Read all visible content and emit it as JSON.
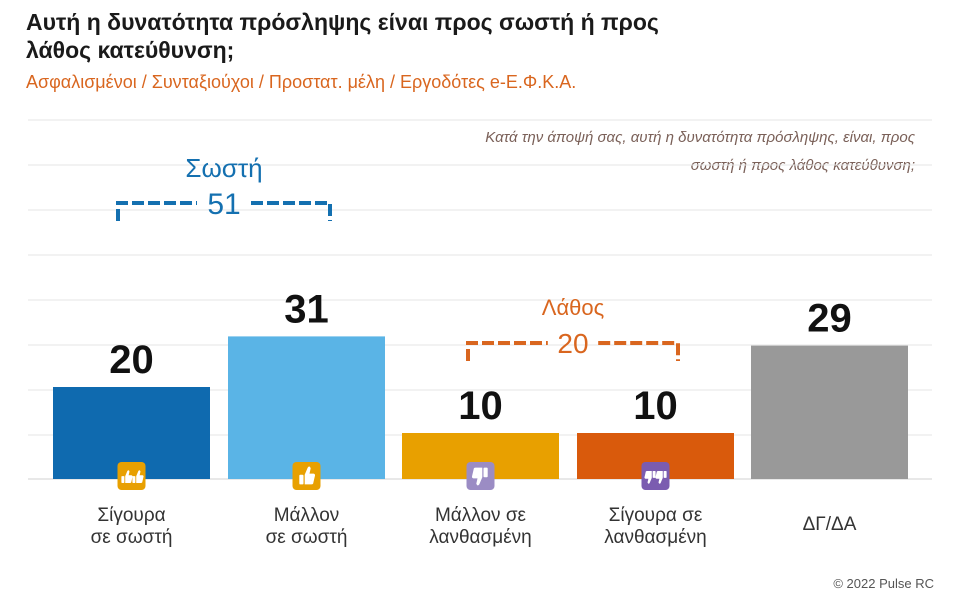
{
  "title": "Αυτή η δυνατότητα πρόσληψης είναι προς σωστή ή προς λάθος κατεύθυνση;",
  "subtitle": "Ασφαλισμένοι / Συνταξιούχοι / Προστατ. μέλη / Εργοδότες e-Ε.Φ.Κ.Α.",
  "question": "Κατά την άποψή σας, αυτή η δυνατότητα πρόσληψης, είναι, προς σωστή ή προς λάθος κατεύθυνση;",
  "copyright": "© 2022 Pulse RC",
  "colors": {
    "correct": "#1470b0",
    "wrong": "#d9661f"
  },
  "chart_data": {
    "type": "bar",
    "categories": [
      [
        "Σίγουρα",
        "σε σωστή"
      ],
      [
        "Μάλλον",
        "σε σωστή"
      ],
      [
        "Μάλλον σε",
        "λανθασμένη"
      ],
      [
        "Σίγουρα σε",
        "λανθασμένη"
      ],
      [
        "ΔΓ/ΔΑ"
      ]
    ],
    "values": [
      20,
      31,
      10,
      10,
      29
    ],
    "colors": [
      "#0f6aaf",
      "#5ab4e6",
      "#e8a000",
      "#d95a0c",
      "#999999"
    ],
    "icons": [
      "two-thumbs-up-icon",
      "thumb-up-icon",
      "thumb-down-icon",
      "two-thumbs-down-icon",
      ""
    ],
    "icon_colors": [
      "#e8a000",
      "#e8a000",
      "#9b8cc4",
      "#7b5cb0",
      ""
    ],
    "ylim": [
      0,
      40
    ],
    "grid": true,
    "groups": [
      {
        "label": "Σωστή",
        "value": "51",
        "from": 0,
        "to": 1,
        "color": "#1470b0"
      },
      {
        "label": "Λάθος",
        "value": "20",
        "from": 2,
        "to": 3,
        "color": "#d9661f"
      }
    ]
  }
}
